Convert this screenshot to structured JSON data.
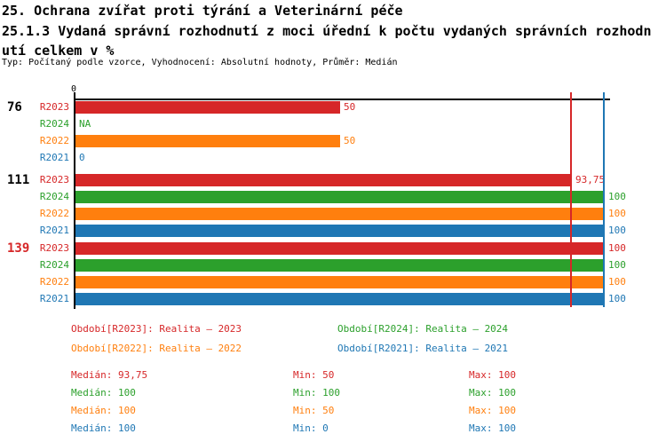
{
  "header": {
    "title_line1": "25. Ochrana zvířat proti týrání a Veterinární péče",
    "title_line2": "25.1.3 Vydaná správní rozhodnutí z moci úřední k počtu vydaných správních rozhodn",
    "title_line3": "utí celkem v %",
    "subtitle": "Typ: Počítaný podle vzorce, Vyhodnocení: Absolutní hodnoty, Průměr: Medián"
  },
  "colors": {
    "r2023": "#d62728",
    "r2024": "#2ca02c",
    "r2022": "#ff7f0e",
    "r2021": "#1f77b4",
    "axis": "#000000"
  },
  "chart_data": {
    "type": "bar",
    "orientation": "horizontal",
    "xlim": [
      0,
      100
    ],
    "axis_origin_label": "0",
    "series_order": [
      "R2023",
      "R2024",
      "R2022",
      "R2021"
    ],
    "groups": [
      {
        "label": "76",
        "label_color": "#000000",
        "bars": [
          {
            "series": "R2023",
            "color": "#d62728",
            "value": 50,
            "value_label": "50"
          },
          {
            "series": "R2024",
            "color": "#2ca02c",
            "value": null,
            "value_label": "NA"
          },
          {
            "series": "R2022",
            "color": "#ff7f0e",
            "value": 50,
            "value_label": "50"
          },
          {
            "series": "R2021",
            "color": "#1f77b4",
            "value": 0,
            "value_label": "0"
          }
        ]
      },
      {
        "label": "111",
        "label_color": "#000000",
        "bars": [
          {
            "series": "R2023",
            "color": "#d62728",
            "value": 93.75,
            "value_label": "93,75"
          },
          {
            "series": "R2024",
            "color": "#2ca02c",
            "value": 100,
            "value_label": "100"
          },
          {
            "series": "R2022",
            "color": "#ff7f0e",
            "value": 100,
            "value_label": "100"
          },
          {
            "series": "R2021",
            "color": "#1f77b4",
            "value": 100,
            "value_label": "100"
          }
        ]
      },
      {
        "label": "139",
        "label_color": "#d62728",
        "bars": [
          {
            "series": "R2023",
            "color": "#d62728",
            "value": 100,
            "value_label": "100"
          },
          {
            "series": "R2024",
            "color": "#2ca02c",
            "value": 100,
            "value_label": "100"
          },
          {
            "series": "R2022",
            "color": "#ff7f0e",
            "value": 100,
            "value_label": "100"
          },
          {
            "series": "R2021",
            "color": "#1f77b4",
            "value": 100,
            "value_label": "100"
          }
        ]
      }
    ],
    "reference_lines": [
      {
        "name": "median-line",
        "value": 93.75,
        "color": "#d62728"
      },
      {
        "name": "max-line",
        "value": 100,
        "color": "#1f77b4"
      }
    ]
  },
  "legend": {
    "items": [
      {
        "text": "Období[R2023]: Realita – 2023",
        "color": "#d62728"
      },
      {
        "text": "Období[R2024]: Realita – 2024",
        "color": "#2ca02c"
      },
      {
        "text": "Období[R2022]: Realita – 2022",
        "color": "#ff7f0e"
      },
      {
        "text": "Období[R2021]: Realita – 2021",
        "color": "#1f77b4"
      }
    ]
  },
  "stats": {
    "rows": [
      {
        "median": "Medián: 93,75",
        "min": "Min: 50",
        "max": "Max: 100",
        "color": "#d62728"
      },
      {
        "median": "Medián: 100",
        "min": "Min: 100",
        "max": "Max: 100",
        "color": "#2ca02c"
      },
      {
        "median": "Medián: 100",
        "min": "Min: 50",
        "max": "Max: 100",
        "color": "#ff7f0e"
      },
      {
        "median": "Medián: 100",
        "min": "Min: 0",
        "max": "Max: 100",
        "color": "#1f77b4"
      }
    ]
  }
}
